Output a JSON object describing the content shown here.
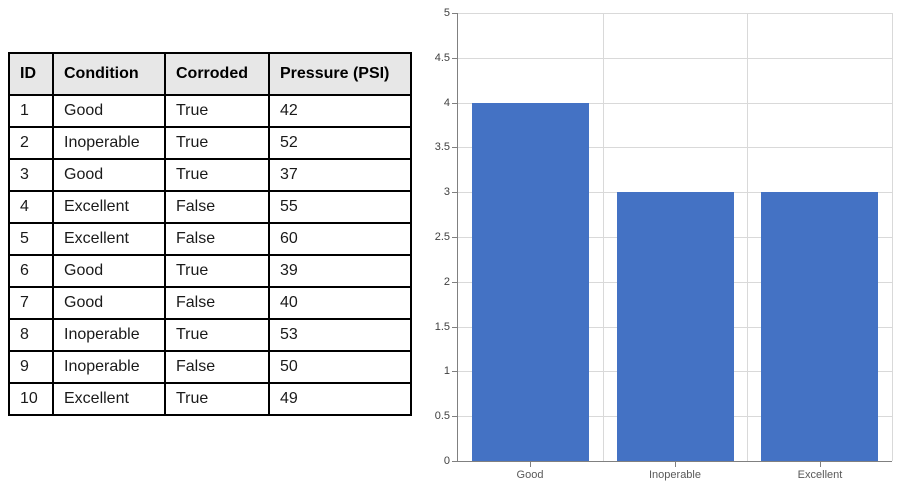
{
  "table": {
    "headers": [
      "ID",
      "Condition",
      "Corroded",
      "Pressure (PSI)"
    ],
    "rows": [
      [
        "1",
        "Good",
        "True",
        "42"
      ],
      [
        "2",
        "Inoperable",
        "True",
        "52"
      ],
      [
        "3",
        "Good",
        "True",
        "37"
      ],
      [
        "4",
        "Excellent",
        "False",
        "55"
      ],
      [
        "5",
        "Excellent",
        "False",
        "60"
      ],
      [
        "6",
        "Good",
        "True",
        "39"
      ],
      [
        "7",
        "Good",
        "False",
        "40"
      ],
      [
        "8",
        "Inoperable",
        "True",
        "53"
      ],
      [
        "9",
        "Inoperable",
        "False",
        "50"
      ],
      [
        "10",
        "Excellent",
        "True",
        "49"
      ]
    ],
    "header_bg": "#E7E7E7",
    "border_color": "#000000"
  },
  "chart_data": {
    "type": "bar",
    "categories": [
      "Good",
      "Inoperable",
      "Excellent"
    ],
    "values": [
      4,
      3,
      3
    ],
    "title": "",
    "xlabel": "",
    "ylabel": "",
    "ylim": [
      0,
      5
    ],
    "ytick_step": 0.5,
    "ytick_labels": [
      "0",
      "0.5",
      "1",
      "1.5",
      "2",
      "2.5",
      "3",
      "3.5",
      "4",
      "4.5",
      "5"
    ],
    "grid": true,
    "legend_position": "none",
    "bar_color": "#4472C4",
    "gridline_color": "#D9D9D9",
    "axis_line_color": "#808080",
    "y_tick_label_color": "#404040",
    "x_tick_label_color": "#595959"
  }
}
